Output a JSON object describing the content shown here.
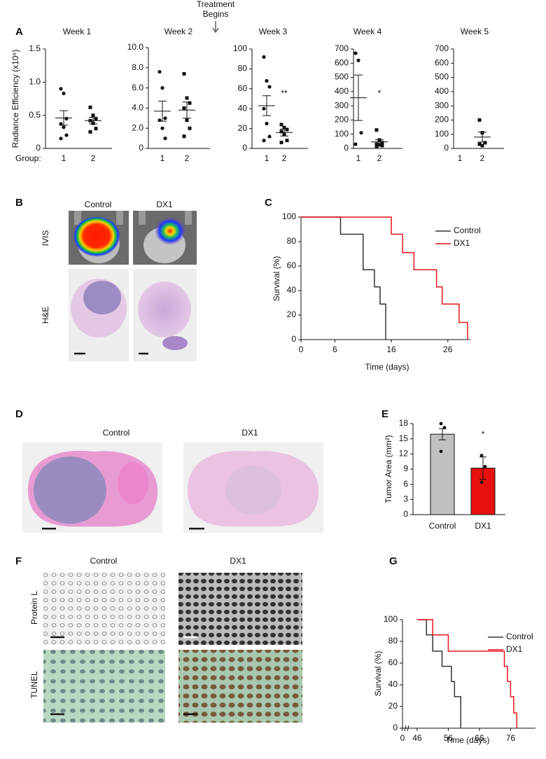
{
  "figure": {
    "panel_labels": [
      "A",
      "B",
      "C",
      "D",
      "E",
      "F",
      "G"
    ],
    "treatment_note": [
      "Treatment",
      "Begins"
    ],
    "panel_b": {
      "columns": [
        "Control",
        "DX1"
      ],
      "rows": [
        "IVIS",
        "H&E"
      ]
    },
    "panel_d": {
      "columns": [
        "Control",
        "DX1"
      ]
    },
    "panel_f": {
      "columns": [
        "Control",
        "DX1"
      ],
      "rows": [
        "Protein L",
        "TUNEL"
      ]
    }
  },
  "chart_data": [
    {
      "type": "dotplot",
      "title": "Week 1",
      "ylabel": "Radiance Efficiency (x10⁶)",
      "xlabel": "Group:",
      "categories": [
        "1",
        "2"
      ],
      "values": [
        [
          0.9,
          0.83,
          0.45,
          0.37,
          0.32,
          0.2,
          0.15
        ],
        [
          0.62,
          0.5,
          0.45,
          0.42,
          0.38,
          0.3,
          0.25
        ]
      ],
      "means": [
        0.46,
        0.42
      ],
      "errors": [
        0.11,
        0.05
      ],
      "ylim": [
        0,
        1.5
      ],
      "yticks": [
        0,
        0.5,
        {
          "value": 1,
          "label": "1.0"
        },
        1.5
      ]
    },
    {
      "type": "dotplot",
      "title": "Week 2",
      "categories": [
        "1",
        "2"
      ],
      "values": [
        [
          7.6,
          6.0,
          3.0,
          2.8,
          2.0,
          1.0
        ],
        [
          7.4,
          5.0,
          4.5,
          4.0,
          2.8,
          2.0,
          1.2
        ]
      ],
      "means": [
        3.7,
        3.8
      ],
      "errors": [
        1.0,
        0.8
      ],
      "ylim": [
        0,
        10
      ],
      "yticks": [
        0,
        {
          "value": 2,
          "label": "2.0"
        },
        {
          "value": 4,
          "label": "4.0"
        },
        {
          "value": 6,
          "label": "6.0"
        },
        {
          "value": 8,
          "label": "8.0"
        },
        {
          "value": 10,
          "label": "10.0"
        }
      ]
    },
    {
      "type": "dotplot",
      "title": "Week 3",
      "categories": [
        "1",
        "2"
      ],
      "values": [
        [
          92,
          68,
          62,
          40,
          25,
          12,
          8
        ],
        [
          24,
          21,
          19,
          17,
          14,
          8,
          6
        ]
      ],
      "means": [
        43,
        16
      ],
      "errors": [
        10,
        3.5
      ],
      "annotations": [
        {
          "x": "2",
          "text": "**"
        }
      ],
      "ylim": [
        0,
        100
      ],
      "yticks": [
        0,
        20,
        40,
        60,
        80,
        100
      ]
    },
    {
      "type": "dotplot",
      "title": "Week 4",
      "categories": [
        "1",
        "2"
      ],
      "values": [
        [
          670,
          620,
          110,
          30
        ],
        [
          130,
          60,
          40,
          30,
          25,
          20,
          15
        ]
      ],
      "means": [
        357,
        46
      ],
      "errors": [
        160,
        15
      ],
      "annotations": [
        {
          "x": "2",
          "text": "*"
        }
      ],
      "ylim": [
        0,
        700
      ],
      "yticks": [
        0,
        100,
        200,
        300,
        400,
        500,
        600,
        700
      ]
    },
    {
      "type": "dotplot",
      "title": "Week 5",
      "categories": [
        "1",
        "2"
      ],
      "values": [
        [],
        [
          200,
          110,
          40,
          30,
          20
        ]
      ],
      "means": [
        null,
        80
      ],
      "errors": [
        null,
        35
      ],
      "ylim": [
        0,
        700
      ],
      "yticks": [
        0,
        100,
        200,
        300,
        400,
        500,
        600,
        700
      ]
    },
    {
      "type": "step",
      "xlabel": "Time (days)",
      "ylabel": "Survival (%)",
      "series": [
        {
          "name": "Control",
          "color": "#333333",
          "x": [
            0,
            7,
            11,
            13,
            14,
            15
          ],
          "values": [
            100,
            86,
            57,
            43,
            29,
            0
          ]
        },
        {
          "name": "DX1",
          "color": "#e8161b",
          "x": [
            0,
            16,
            18,
            20,
            24,
            25,
            28,
            29.5
          ],
          "values": [
            100,
            86,
            71,
            57,
            43,
            29,
            14,
            0
          ]
        }
      ],
      "xlim": [
        0,
        30
      ],
      "xticks": [
        0,
        6,
        16,
        26
      ],
      "ylim": [
        0,
        100
      ],
      "yticks": [
        0,
        20,
        40,
        60,
        80,
        100
      ]
    },
    {
      "type": "bar",
      "ylabel": "Tumor Area (mm²)",
      "categories": [
        "Control",
        "DX1"
      ],
      "values": [
        15.9,
        9.2
      ],
      "errors": [
        1.1,
        2.2
      ],
      "colors": [
        "#c0c0c0",
        "#e8100f"
      ],
      "points": [
        [
          18,
          17.2,
          12.5
        ],
        [
          11.7,
          9.5,
          6.4
        ]
      ],
      "annotations": [
        {
          "x": "DX1",
          "text": "*"
        }
      ],
      "ylim": [
        0,
        18
      ],
      "yticks": [
        0,
        3,
        6,
        9,
        12,
        15,
        18
      ]
    },
    {
      "type": "step",
      "xlabel": "Time (days)",
      "ylabel": "Survival (%)",
      "series": [
        {
          "name": "Control",
          "color": "#333333",
          "x": [
            46,
            49,
            51,
            54,
            57,
            58,
            60
          ],
          "values": [
            100,
            86,
            71,
            57,
            43,
            29,
            0
          ]
        },
        {
          "name": "DX1",
          "color": "#e8161b",
          "x": [
            46,
            51,
            56,
            74,
            75,
            76,
            77,
            78
          ],
          "values": [
            100,
            86,
            71,
            57,
            43,
            29,
            14,
            0
          ]
        }
      ],
      "xlim": [
        0,
        84
      ],
      "axis_break": [
        0,
        44
      ],
      "xticks": [
        0,
        46,
        56,
        66,
        76
      ],
      "ylim": [
        0,
        100
      ],
      "yticks": [
        0,
        20,
        40,
        60,
        80,
        100
      ]
    }
  ]
}
